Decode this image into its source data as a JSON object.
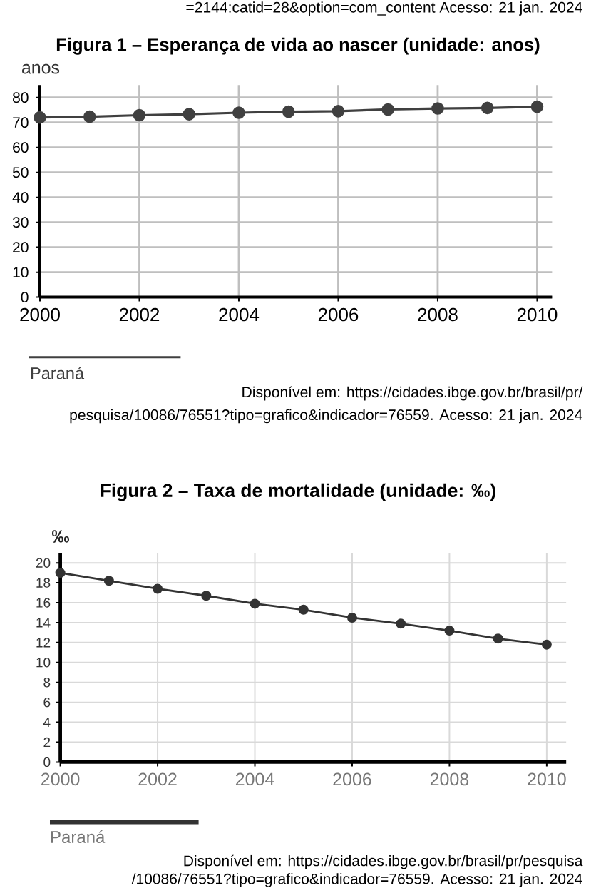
{
  "chart_data": [
    {
      "type": "line",
      "title": "Figura 1 – Esperança de vida ao nascer (unidade: anos)",
      "ylabel": "anos",
      "x": [
        2000,
        2001,
        2002,
        2003,
        2004,
        2005,
        2006,
        2007,
        2008,
        2009,
        2010
      ],
      "series": [
        {
          "name": "Paraná",
          "color": "#404040",
          "values": [
            72.0,
            72.3,
            72.9,
            73.3,
            73.9,
            74.3,
            74.5,
            75.2,
            75.6,
            75.8,
            76.3
          ]
        }
      ],
      "xlim": [
        2000,
        2010.3
      ],
      "ylim": [
        0,
        85
      ],
      "xticks": [
        2000,
        2002,
        2004,
        2006,
        2008,
        2010
      ],
      "yticks": [
        0,
        10,
        20,
        30,
        40,
        50,
        60,
        70,
        80
      ],
      "grid": true,
      "legend": "bottom left",
      "marker": "circle",
      "line_style": "solid",
      "annotations": [
        "=2144:catid=28&option=com_content Acesso: 21 jan. 2024",
        "Disponível em: https://cidades.ibge.gov.br/brasil/pr/",
        "pesquisa/10086/76551?tipo=grafico&indicador=76559. Acesso: 21 jan. 2024"
      ]
    },
    {
      "type": "line",
      "title": "Figura 2 – Taxa de mortalidade (unidade: ‰)",
      "ylabel": "‰",
      "x": [
        2000,
        2001,
        2002,
        2003,
        2004,
        2005,
        2006,
        2007,
        2008,
        2009,
        2010
      ],
      "series": [
        {
          "name": "Paraná",
          "color": "#333333",
          "values": [
            19.0,
            18.2,
            17.4,
            16.7,
            15.9,
            15.3,
            14.5,
            13.9,
            13.2,
            12.4,
            11.8
          ]
        }
      ],
      "xlim": [
        2000,
        2010.4
      ],
      "ylim": [
        0,
        21
      ],
      "xticks": [
        2000,
        2002,
        2004,
        2006,
        2008,
        2010
      ],
      "yticks": [
        0,
        2,
        4,
        6,
        8,
        10,
        12,
        14,
        16,
        18,
        20
      ],
      "grid": true,
      "legend": "bottom left",
      "marker": "circle",
      "line_style": "solid",
      "annotations": [
        "Disponível em: https://cidades.ibge.gov.br/brasil/pr/pesquisa",
        "/10086/76551?tipo=grafico&indicador=76559. Acesso: 21 jan. 2024"
      ]
    }
  ]
}
